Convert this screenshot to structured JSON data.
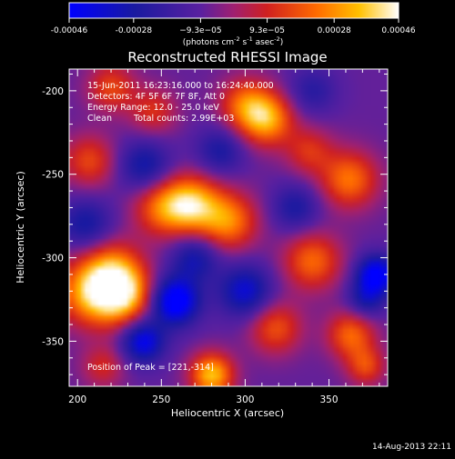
{
  "chart_data": {
    "type": "heatmap",
    "title": "Reconstructed RHESSI Image",
    "xlabel": "Heliocentric X (arcsec)",
    "ylabel": "Heliocentric Y (arcsec)",
    "xlim": [
      195,
      385
    ],
    "ylim": [
      -377,
      -187
    ],
    "x_ticks": [
      200,
      250,
      300,
      350
    ],
    "y_ticks": [
      -200,
      -250,
      -300,
      -350
    ],
    "colorbar": {
      "range": [
        -0.00046,
        0.00046
      ],
      "tick_values": [
        -0.00046,
        -0.00028,
        -9.3e-05,
        9.3e-05,
        0.00028,
        0.00046
      ],
      "tick_labels": [
        "-0.00046",
        "-0.00028",
        "−9.3e−05",
        "9.3e−05",
        "0.00028",
        "0.00046"
      ],
      "unit_label_parts": [
        "(photons cm",
        "-2",
        " s",
        "-1",
        " asec",
        "-2",
        ")"
      ],
      "stops": [
        {
          "v": 0.0,
          "color": "#0000ff"
        },
        {
          "v": 0.2,
          "color": "#1a1aa0"
        },
        {
          "v": 0.4,
          "color": "#5a20a0"
        },
        {
          "v": 0.5,
          "color": "#a02070"
        },
        {
          "v": 0.6,
          "color": "#d02020"
        },
        {
          "v": 0.75,
          "color": "#ff6a00"
        },
        {
          "v": 0.88,
          "color": "#ffc000"
        },
        {
          "v": 1.0,
          "color": "#ffffff"
        }
      ]
    },
    "annotations": {
      "time": "15-Jun-2011 16:23:16.000 to 16:24:40.000",
      "detectors": "Detectors: 4F 5F 6F 7F 8F, Att 0",
      "energy": "Energy Range: 12.0 - 25.0 keV",
      "clean": "Clean",
      "counts": "Total counts: 2.99E+03",
      "peak": "Position of Peak = [221,-314]"
    },
    "sources": [
      {
        "x": 210,
        "y": -320,
        "amp": 0.00046,
        "s": 14
      },
      {
        "x": 228,
        "y": -322,
        "amp": 0.00038,
        "s": 12
      },
      {
        "x": 222,
        "y": -305,
        "amp": 0.00022,
        "s": 12
      },
      {
        "x": 280,
        "y": -370,
        "amp": 0.00044,
        "s": 9
      },
      {
        "x": 268,
        "y": -268,
        "amp": 0.00042,
        "s": 12
      },
      {
        "x": 290,
        "y": -278,
        "amp": 0.00034,
        "s": 12
      },
      {
        "x": 250,
        "y": -270,
        "amp": 0.00028,
        "s": 12
      },
      {
        "x": 313,
        "y": -217,
        "amp": 0.00038,
        "s": 11
      },
      {
        "x": 300,
        "y": -208,
        "amp": 0.00028,
        "s": 11
      },
      {
        "x": 220,
        "y": -198,
        "amp": 0.00024,
        "s": 10
      },
      {
        "x": 245,
        "y": -212,
        "amp": 0.0002,
        "s": 10
      },
      {
        "x": 207,
        "y": -242,
        "amp": 0.00024,
        "s": 11
      },
      {
        "x": 362,
        "y": -253,
        "amp": 0.00032,
        "s": 12
      },
      {
        "x": 340,
        "y": -302,
        "amp": 0.0003,
        "s": 12
      },
      {
        "x": 363,
        "y": -346,
        "amp": 0.0003,
        "s": 10
      },
      {
        "x": 318,
        "y": -342,
        "amp": 0.00026,
        "s": 11
      },
      {
        "x": 338,
        "y": -236,
        "amp": 0.0002,
        "s": 10
      },
      {
        "x": 372,
        "y": -365,
        "amp": 0.00024,
        "s": 8
      },
      {
        "x": 215,
        "y": -365,
        "amp": 0.00018,
        "s": 9
      },
      {
        "x": 258,
        "y": -326,
        "amp": -0.00046,
        "s": 10
      },
      {
        "x": 239,
        "y": -350,
        "amp": -0.00036,
        "s": 9
      },
      {
        "x": 378,
        "y": -310,
        "amp": -0.00042,
        "s": 8
      },
      {
        "x": 372,
        "y": -325,
        "amp": -0.00022,
        "s": 8
      },
      {
        "x": 240,
        "y": -245,
        "amp": -0.00024,
        "s": 11
      },
      {
        "x": 205,
        "y": -280,
        "amp": -0.00022,
        "s": 11
      },
      {
        "x": 300,
        "y": -320,
        "amp": -0.0003,
        "s": 11
      },
      {
        "x": 330,
        "y": -270,
        "amp": -0.0002,
        "s": 10
      },
      {
        "x": 270,
        "y": -300,
        "amp": -0.00024,
        "s": 10
      },
      {
        "x": 285,
        "y": -236,
        "amp": -0.0002,
        "s": 10
      },
      {
        "x": 340,
        "y": -200,
        "amp": -0.00016,
        "s": 10
      }
    ]
  },
  "footer": {
    "timestamp": "14-Aug-2013 22:11"
  }
}
